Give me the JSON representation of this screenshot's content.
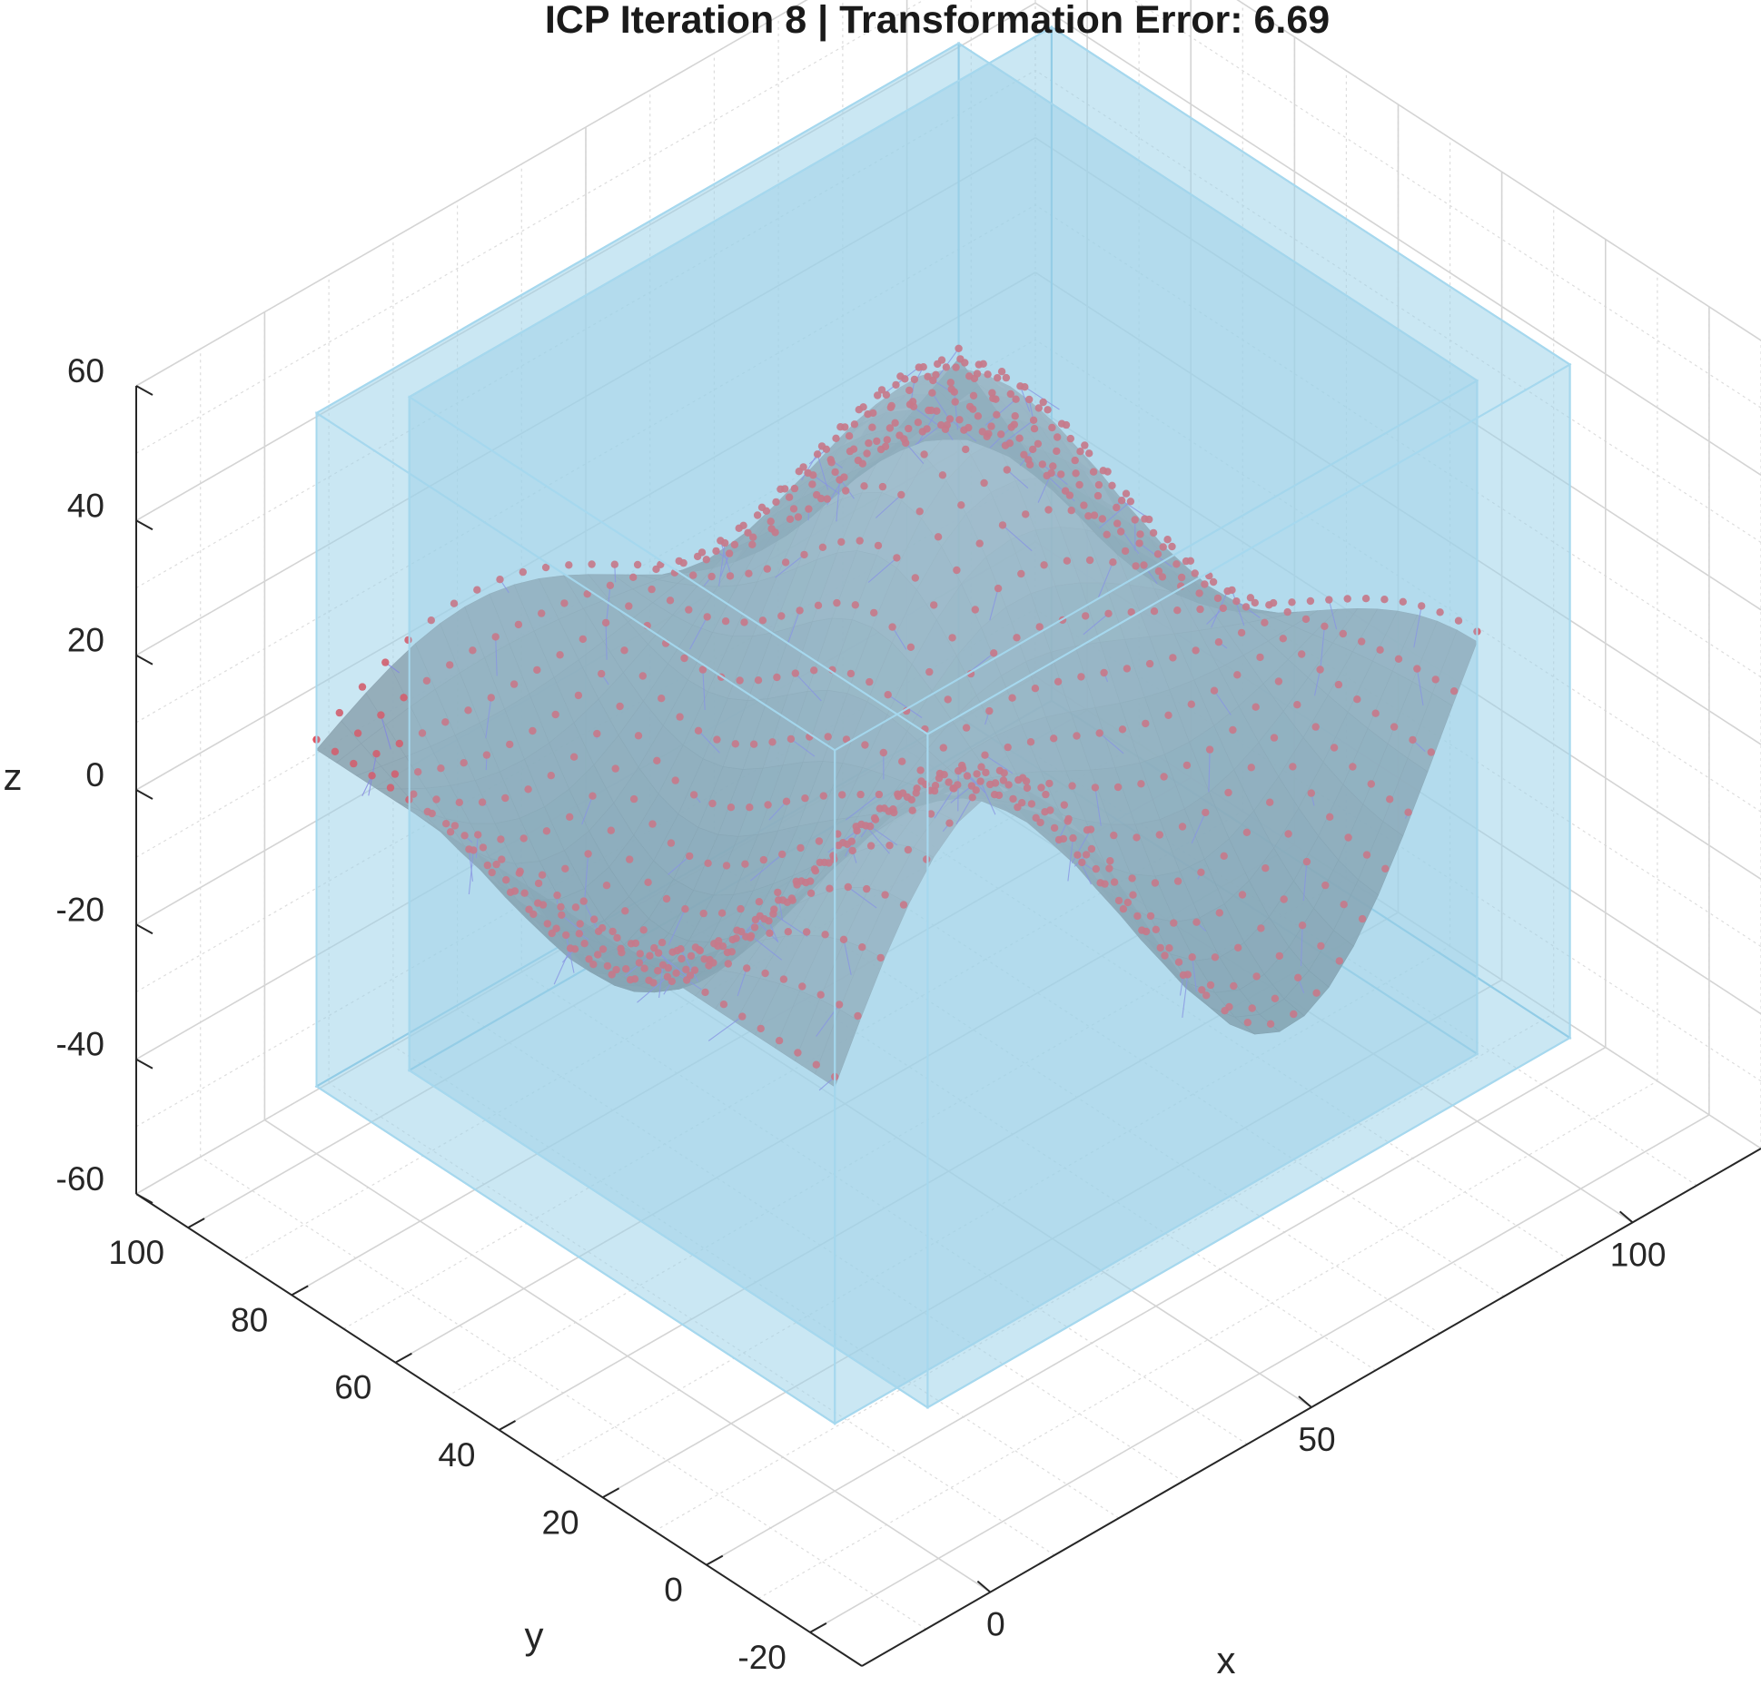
{
  "chart_data": {
    "type": "surface3d",
    "title": "ICP Iteration 8 | Transformation Error: 6.69",
    "xlabel": "x",
    "ylabel": "y",
    "zlabel": "z",
    "xlim": [
      -20,
      120
    ],
    "ylim": [
      -30,
      110
    ],
    "zlim": [
      -60,
      60
    ],
    "xticks": [
      0,
      50,
      100
    ],
    "yticks": [
      -20,
      0,
      20,
      40,
      60,
      80,
      100
    ],
    "zticks": [
      -60,
      -40,
      -20,
      0,
      20,
      40,
      60
    ],
    "grid": true,
    "minor_grid": true,
    "series": [
      {
        "name": "",
        "kind": "surface",
        "color": "#8fa3ad"
      },
      {
        "name": "",
        "kind": "scatter",
        "color": "#e0424f"
      },
      {
        "name": "",
        "kind": "correspondence-lines",
        "color": "#7a6fe0"
      }
    ],
    "bounding_boxes": [
      {
        "x": [
          0,
          100
        ],
        "y": [
          0,
          100
        ],
        "z": [
          -50,
          50
        ],
        "color": "#9fd3ea"
      },
      {
        "x": [
          8,
          108
        ],
        "y": [
          -8,
          92
        ],
        "z": [
          -48,
          52
        ],
        "color": "#9fd3ea"
      }
    ],
    "surface_function": "z = 30*sin(x/15)*cos(y/20) + 20*exp(-((x-50)^2+(y-50)^2)/500)",
    "grid_samples": 26,
    "point_samples": 28
  }
}
